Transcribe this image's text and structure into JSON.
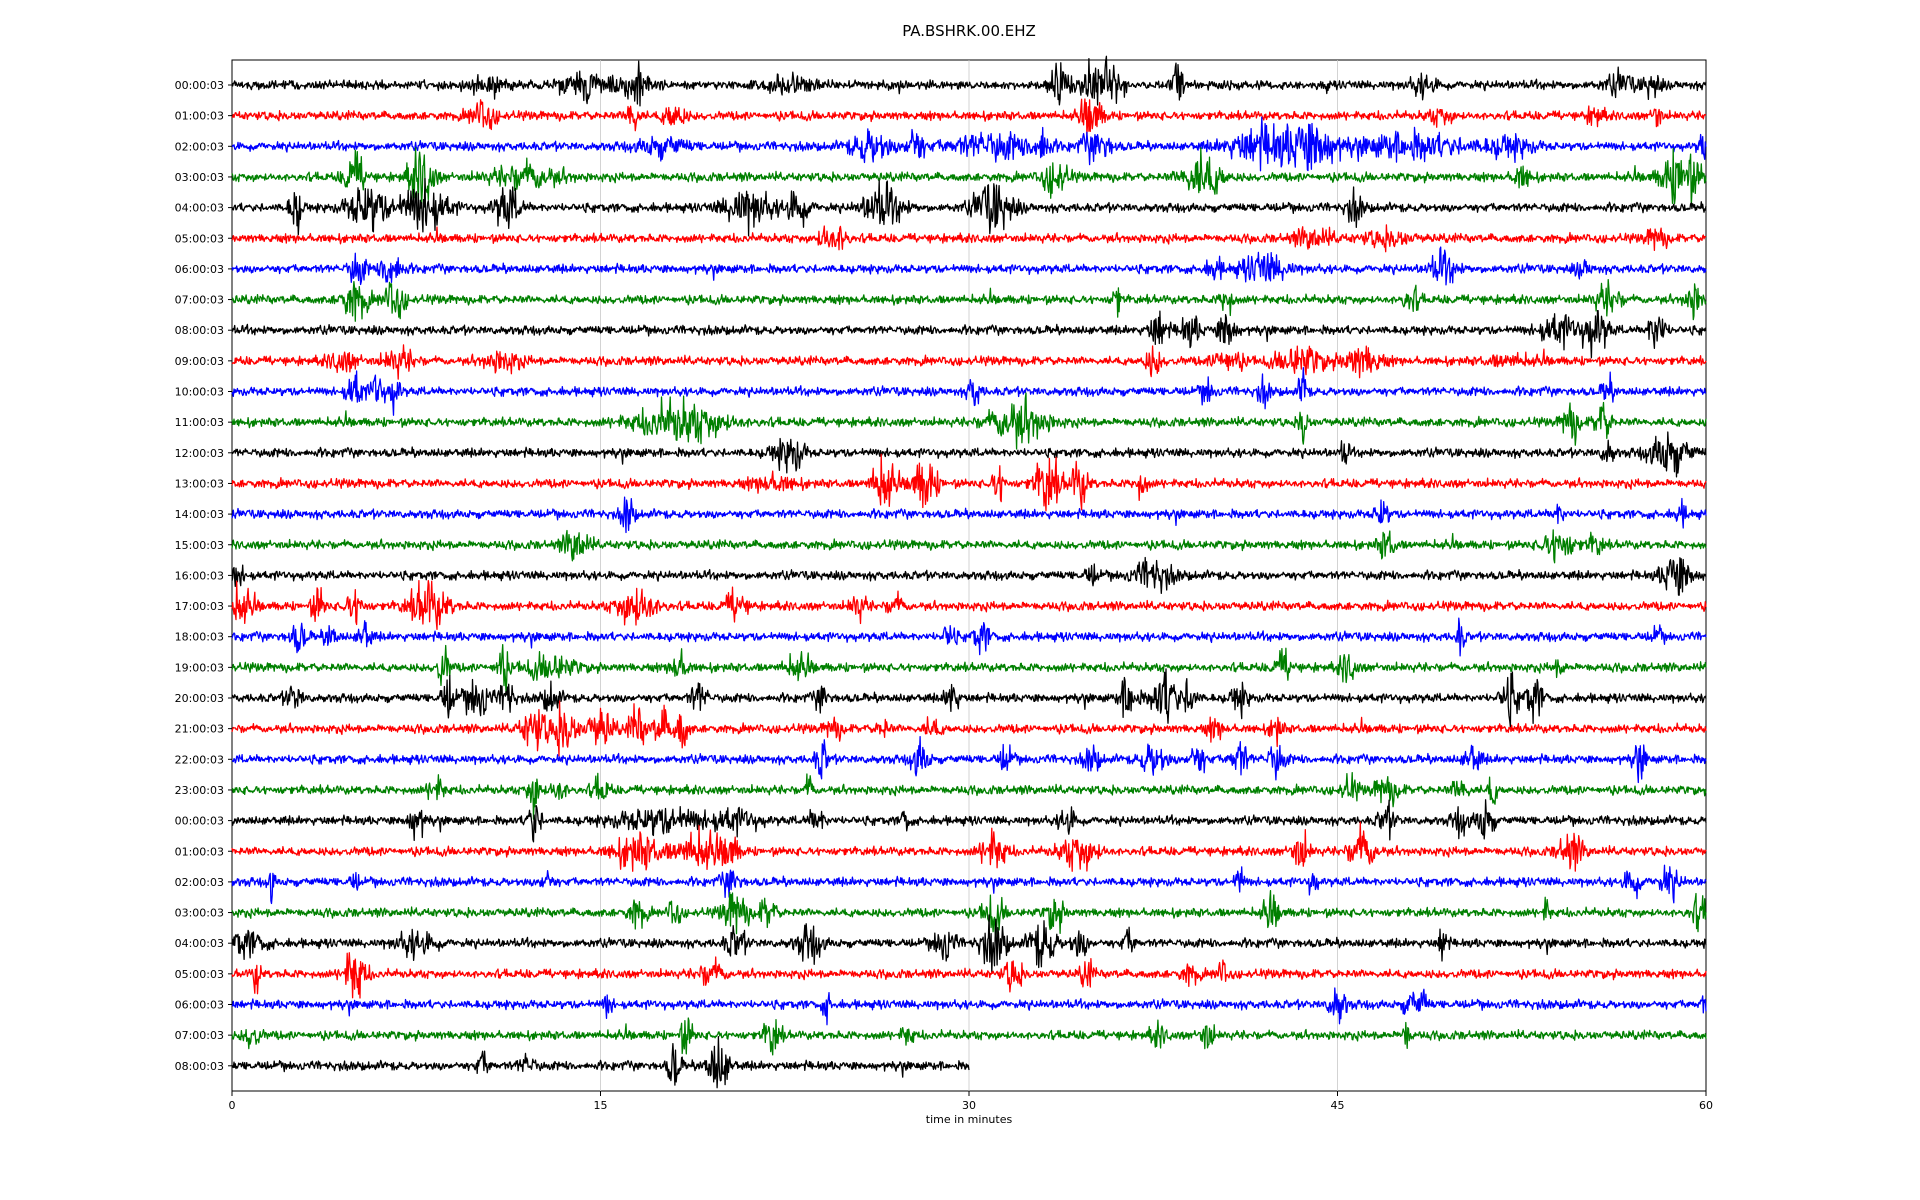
{
  "chart_data": {
    "type": "line",
    "title": "PA.BSHRK.00.EHZ",
    "xlabel": "time in minutes",
    "ylabel": "",
    "xlim": [
      0,
      60
    ],
    "xticks": [
      0,
      15,
      30,
      45,
      60
    ],
    "xtick_labels": [
      "0",
      "15",
      "30",
      "45",
      "60"
    ],
    "grid": "vertical lines at x ticks",
    "colors": [
      "#000000",
      "#ff0000",
      "#0000ff",
      "#008000"
    ],
    "row_labels": [
      "00:00:03",
      "01:00:03",
      "02:00:03",
      "03:00:03",
      "04:00:03",
      "05:00:03",
      "06:00:03",
      "07:00:03",
      "08:00:03",
      "09:00:03",
      "10:00:03",
      "11:00:03",
      "12:00:03",
      "13:00:03",
      "14:00:03",
      "15:00:03",
      "16:00:03",
      "17:00:03",
      "18:00:03",
      "19:00:03",
      "20:00:03",
      "21:00:03",
      "22:00:03",
      "23:00:03",
      "00:00:03",
      "01:00:03",
      "02:00:03",
      "03:00:03",
      "04:00:03",
      "05:00:03",
      "06:00:03",
      "07:00:03",
      "08:00:03"
    ],
    "last_row_end_minute": 30,
    "noise_level": 0.18,
    "bursts": [
      [
        [
          10.5,
          0.8,
          0.4
        ],
        [
          14.3,
          1.2,
          0.5
        ],
        [
          16.4,
          0.6,
          0.7
        ],
        [
          22.5,
          1.0,
          0.3
        ],
        [
          33.7,
          0.4,
          0.9
        ],
        [
          35.3,
          0.8,
          1.0
        ],
        [
          38.5,
          0.2,
          1.0
        ],
        [
          48.5,
          0.5,
          0.4
        ],
        [
          56.5,
          0.6,
          0.4
        ],
        [
          57.8,
          0.3,
          0.5
        ]
      ],
      [
        [
          10.2,
          0.5,
          0.6
        ],
        [
          16.3,
          0.2,
          0.9
        ],
        [
          18.0,
          0.4,
          0.6
        ],
        [
          35.0,
          0.4,
          0.8
        ],
        [
          49.2,
          0.5,
          0.3
        ],
        [
          55.5,
          0.3,
          0.4
        ],
        [
          58.0,
          0.1,
          0.7
        ]
      ],
      [
        [
          17.5,
          1.0,
          0.4
        ],
        [
          26.0,
          0.8,
          0.7
        ],
        [
          27.8,
          0.3,
          0.9
        ],
        [
          31.0,
          2.0,
          0.5
        ],
        [
          33.0,
          0.2,
          1.0
        ],
        [
          35.2,
          0.6,
          0.6
        ],
        [
          42.0,
          1.5,
          0.8
        ],
        [
          44.0,
          1.0,
          1.0
        ],
        [
          48.0,
          2.5,
          0.5
        ],
        [
          52.0,
          1.0,
          0.4
        ],
        [
          60.0,
          0.2,
          0.9
        ]
      ],
      [
        [
          5.0,
          0.4,
          0.9
        ],
        [
          7.7,
          0.5,
          1.2
        ],
        [
          12.0,
          1.5,
          0.5
        ],
        [
          33.5,
          0.5,
          0.7
        ],
        [
          39.5,
          0.8,
          1.0
        ],
        [
          52.5,
          0.3,
          0.5
        ],
        [
          59.0,
          0.8,
          1.2
        ]
      ],
      [
        [
          2.6,
          0.2,
          1.0
        ],
        [
          5.5,
          0.8,
          1.0
        ],
        [
          7.8,
          1.0,
          1.0
        ],
        [
          11.2,
          0.5,
          0.9
        ],
        [
          21.0,
          1.0,
          0.8
        ],
        [
          23.0,
          0.5,
          0.7
        ],
        [
          26.5,
          0.8,
          0.9
        ],
        [
          31.0,
          0.8,
          1.0
        ],
        [
          45.7,
          0.3,
          0.6
        ]
      ],
      [
        [
          24.2,
          0.3,
          0.6
        ],
        [
          24.8,
          0.2,
          0.7
        ],
        [
          44.0,
          0.8,
          0.4
        ],
        [
          47.0,
          1.0,
          0.3
        ],
        [
          58.0,
          0.4,
          0.4
        ]
      ],
      [
        [
          5.1,
          0.3,
          0.7
        ],
        [
          6.5,
          0.4,
          0.9
        ],
        [
          40.0,
          0.3,
          0.4
        ],
        [
          42.0,
          1.0,
          0.6
        ],
        [
          49.3,
          0.5,
          0.7
        ],
        [
          55.0,
          0.3,
          0.3
        ]
      ],
      [
        [
          5.0,
          0.5,
          0.8
        ],
        [
          6.6,
          0.4,
          0.8
        ],
        [
          36.0,
          0.1,
          0.8
        ],
        [
          40.5,
          0.2,
          0.7
        ],
        [
          48.0,
          0.3,
          0.5
        ],
        [
          56.0,
          0.5,
          0.6
        ],
        [
          59.5,
          0.3,
          0.7
        ]
      ],
      [
        [
          37.7,
          0.3,
          0.8
        ],
        [
          39.0,
          0.4,
          0.6
        ],
        [
          40.5,
          0.3,
          0.9
        ],
        [
          54.0,
          0.8,
          0.6
        ],
        [
          55.5,
          0.5,
          0.9
        ],
        [
          58.0,
          0.3,
          1.0
        ]
      ],
      [
        [
          4.5,
          0.6,
          0.4
        ],
        [
          6.8,
          0.6,
          0.5
        ],
        [
          11.0,
          0.8,
          0.4
        ],
        [
          37.5,
          0.3,
          0.6
        ],
        [
          40.5,
          0.6,
          0.5
        ],
        [
          43.5,
          1.0,
          0.6
        ],
        [
          46.0,
          0.8,
          0.6
        ],
        [
          52.0,
          1.0,
          0.2
        ]
      ],
      [
        [
          5.0,
          0.3,
          0.8
        ],
        [
          5.9,
          0.2,
          0.8
        ],
        [
          6.6,
          0.2,
          0.7
        ],
        [
          30.2,
          0.2,
          0.7
        ],
        [
          39.7,
          0.2,
          0.5
        ],
        [
          42.0,
          0.2,
          0.5
        ],
        [
          43.6,
          0.1,
          1.0
        ],
        [
          56.0,
          0.2,
          0.5
        ]
      ],
      [
        [
          18.3,
          2.0,
          0.8
        ],
        [
          32.0,
          1.2,
          0.9
        ],
        [
          54.5,
          0.3,
          0.8
        ],
        [
          55.8,
          0.3,
          0.8
        ],
        [
          43.6,
          0.1,
          1.0
        ]
      ],
      [
        [
          22.5,
          0.6,
          0.5
        ],
        [
          23.0,
          0.3,
          0.4
        ],
        [
          45.3,
          0.1,
          0.6
        ],
        [
          58.5,
          0.8,
          0.9
        ],
        [
          56.0,
          0.2,
          0.5
        ]
      ],
      [
        [
          26.5,
          0.4,
          1.2
        ],
        [
          28.2,
          0.5,
          1.0
        ],
        [
          31.2,
          0.2,
          0.8
        ],
        [
          33.2,
          0.5,
          1.2
        ],
        [
          34.5,
          0.3,
          1.0
        ],
        [
          37.0,
          0.2,
          0.6
        ],
        [
          22.0,
          1.0,
          0.3
        ]
      ],
      [
        [
          16.1,
          0.2,
          0.8
        ],
        [
          46.8,
          0.2,
          0.7
        ],
        [
          54.0,
          0.2,
          0.4
        ],
        [
          59.0,
          0.2,
          0.4
        ]
      ],
      [
        [
          14.0,
          0.5,
          0.7
        ],
        [
          47.0,
          0.3,
          0.6
        ],
        [
          54.0,
          0.6,
          0.7
        ],
        [
          55.5,
          0.3,
          0.4
        ]
      ],
      [
        [
          0.2,
          0.3,
          0.4
        ],
        [
          35.0,
          0.2,
          0.4
        ],
        [
          37.5,
          0.8,
          0.6
        ],
        [
          58.8,
          0.6,
          0.9
        ]
      ],
      [
        [
          0.3,
          0.5,
          0.7
        ],
        [
          3.5,
          0.2,
          0.8
        ],
        [
          5.0,
          0.3,
          0.7
        ],
        [
          8.0,
          0.8,
          1.0
        ],
        [
          16.5,
          0.8,
          0.9
        ],
        [
          20.5,
          0.4,
          0.6
        ],
        [
          25.5,
          0.3,
          0.5
        ],
        [
          27.0,
          0.3,
          0.4
        ]
      ],
      [
        [
          2.7,
          0.3,
          0.6
        ],
        [
          4.0,
          0.2,
          0.5
        ],
        [
          5.4,
          0.2,
          0.7
        ],
        [
          29.2,
          0.2,
          0.6
        ],
        [
          30.5,
          0.3,
          0.6
        ],
        [
          50.0,
          0.1,
          0.8
        ],
        [
          58.0,
          0.2,
          0.3
        ]
      ],
      [
        [
          8.6,
          0.2,
          0.9
        ],
        [
          11.0,
          0.2,
          1.0
        ],
        [
          13.0,
          1.0,
          0.5
        ],
        [
          18.2,
          0.3,
          0.6
        ],
        [
          23.0,
          0.5,
          0.4
        ],
        [
          42.8,
          0.3,
          0.6
        ],
        [
          45.4,
          0.3,
          0.6
        ],
        [
          54.0,
          0.2,
          0.3
        ]
      ],
      [
        [
          2.5,
          0.3,
          0.5
        ],
        [
          8.8,
          0.2,
          0.9
        ],
        [
          10.0,
          0.5,
          0.8
        ],
        [
          11.2,
          0.2,
          0.9
        ],
        [
          13.0,
          0.3,
          0.6
        ],
        [
          19.0,
          0.3,
          0.6
        ],
        [
          24.0,
          0.2,
          0.6
        ],
        [
          29.3,
          0.2,
          0.8
        ],
        [
          36.5,
          0.3,
          1.0
        ],
        [
          38.0,
          0.5,
          1.2
        ],
        [
          39.0,
          0.2,
          0.9
        ],
        [
          41.0,
          0.3,
          0.6
        ],
        [
          52.0,
          0.3,
          1.0
        ],
        [
          53.0,
          0.3,
          0.9
        ]
      ],
      [
        [
          12.3,
          0.5,
          0.9
        ],
        [
          13.5,
          0.5,
          0.9
        ],
        [
          15.0,
          0.5,
          0.8
        ],
        [
          16.5,
          0.3,
          0.9
        ],
        [
          17.5,
          0.3,
          0.8
        ],
        [
          18.3,
          0.2,
          1.0
        ],
        [
          24.5,
          0.3,
          0.4
        ],
        [
          26.5,
          0.2,
          0.4
        ],
        [
          28.5,
          0.3,
          0.4
        ],
        [
          40.0,
          0.3,
          0.4
        ],
        [
          42.5,
          0.2,
          0.6
        ]
      ],
      [
        [
          24.0,
          0.2,
          0.8
        ],
        [
          28.0,
          0.3,
          0.8
        ],
        [
          31.5,
          0.2,
          0.6
        ],
        [
          35.0,
          0.3,
          0.5
        ],
        [
          37.5,
          0.5,
          0.7
        ],
        [
          39.3,
          0.3,
          0.7
        ],
        [
          41.0,
          0.3,
          0.8
        ],
        [
          42.5,
          0.3,
          0.7
        ],
        [
          50.5,
          0.3,
          0.6
        ],
        [
          57.3,
          0.2,
          0.7
        ]
      ],
      [
        [
          8.3,
          0.3,
          0.5
        ],
        [
          12.3,
          0.2,
          1.0
        ],
        [
          13.3,
          0.3,
          0.5
        ],
        [
          15.0,
          0.3,
          0.5
        ],
        [
          23.5,
          0.1,
          0.6
        ],
        [
          45.5,
          0.3,
          0.5
        ],
        [
          47.0,
          0.5,
          0.5
        ],
        [
          50.0,
          0.3,
          0.5
        ],
        [
          51.3,
          0.1,
          0.8
        ]
      ],
      [
        [
          7.5,
          0.3,
          0.7
        ],
        [
          12.3,
          0.2,
          1.0
        ],
        [
          17.5,
          2.0,
          0.5
        ],
        [
          20.5,
          1.0,
          0.4
        ],
        [
          23.8,
          0.3,
          0.5
        ],
        [
          27.4,
          0.1,
          0.5
        ],
        [
          34.0,
          0.3,
          0.6
        ],
        [
          47.0,
          0.3,
          0.6
        ],
        [
          50.0,
          0.3,
          0.5
        ],
        [
          51.0,
          0.3,
          0.9
        ]
      ],
      [
        [
          16.5,
          1.0,
          0.7
        ],
        [
          19.0,
          1.0,
          0.7
        ],
        [
          20.3,
          0.3,
          0.6
        ],
        [
          31.0,
          0.5,
          0.8
        ],
        [
          34.5,
          0.8,
          0.7
        ],
        [
          43.5,
          0.3,
          0.8
        ],
        [
          46.0,
          0.5,
          0.9
        ],
        [
          54.5,
          0.5,
          0.7
        ]
      ],
      [
        [
          1.6,
          0.05,
          0.9
        ],
        [
          5.0,
          0.1,
          0.4
        ],
        [
          12.8,
          0.2,
          0.5
        ],
        [
          20.3,
          0.3,
          0.6
        ],
        [
          41.0,
          0.1,
          0.8
        ],
        [
          44.0,
          0.1,
          0.6
        ],
        [
          57.0,
          0.3,
          0.6
        ],
        [
          58.5,
          0.4,
          0.6
        ]
      ],
      [
        [
          16.5,
          0.3,
          0.6
        ],
        [
          18.0,
          0.2,
          0.6
        ],
        [
          20.5,
          0.5,
          0.8
        ],
        [
          21.8,
          0.3,
          0.6
        ],
        [
          31.0,
          0.4,
          0.7
        ],
        [
          33.5,
          0.3,
          0.7
        ],
        [
          42.3,
          0.3,
          0.6
        ],
        [
          53.5,
          0.1,
          0.5
        ],
        [
          59.7,
          0.3,
          0.6
        ]
      ],
      [
        [
          0.5,
          0.8,
          0.5
        ],
        [
          7.5,
          0.8,
          0.5
        ],
        [
          20.5,
          0.4,
          0.6
        ],
        [
          23.5,
          0.5,
          0.7
        ],
        [
          29.0,
          0.4,
          0.7
        ],
        [
          31.0,
          0.5,
          1.0
        ],
        [
          33.0,
          0.5,
          1.0
        ],
        [
          34.5,
          0.3,
          0.6
        ],
        [
          36.5,
          0.2,
          0.5
        ],
        [
          49.3,
          0.1,
          1.0
        ]
      ],
      [
        [
          1.0,
          0.1,
          0.8
        ],
        [
          5.0,
          0.4,
          1.2
        ],
        [
          19.5,
          0.5,
          0.5
        ],
        [
          31.8,
          0.3,
          0.7
        ],
        [
          34.8,
          0.2,
          0.6
        ],
        [
          39.0,
          0.3,
          0.4
        ],
        [
          40.3,
          0.2,
          0.5
        ]
      ],
      [
        [
          15.3,
          0.1,
          0.6
        ],
        [
          24.2,
          0.1,
          0.6
        ],
        [
          45.0,
          0.3,
          0.8
        ],
        [
          48.0,
          0.3,
          0.5
        ],
        [
          48.5,
          0.1,
          0.6
        ],
        [
          60.0,
          0.2,
          0.4
        ]
      ],
      [
        [
          0.8,
          0.3,
          0.5
        ],
        [
          18.5,
          0.2,
          0.8
        ],
        [
          22.0,
          0.3,
          0.8
        ],
        [
          27.5,
          0.2,
          0.4
        ],
        [
          37.7,
          0.3,
          0.4
        ],
        [
          39.7,
          0.2,
          0.7
        ],
        [
          47.8,
          0.1,
          0.7
        ]
      ],
      [
        [
          10.2,
          0.2,
          0.5
        ],
        [
          12.0,
          0.3,
          0.4
        ],
        [
          18.0,
          0.2,
          1.0
        ],
        [
          19.8,
          0.4,
          1.2
        ]
      ]
    ]
  }
}
